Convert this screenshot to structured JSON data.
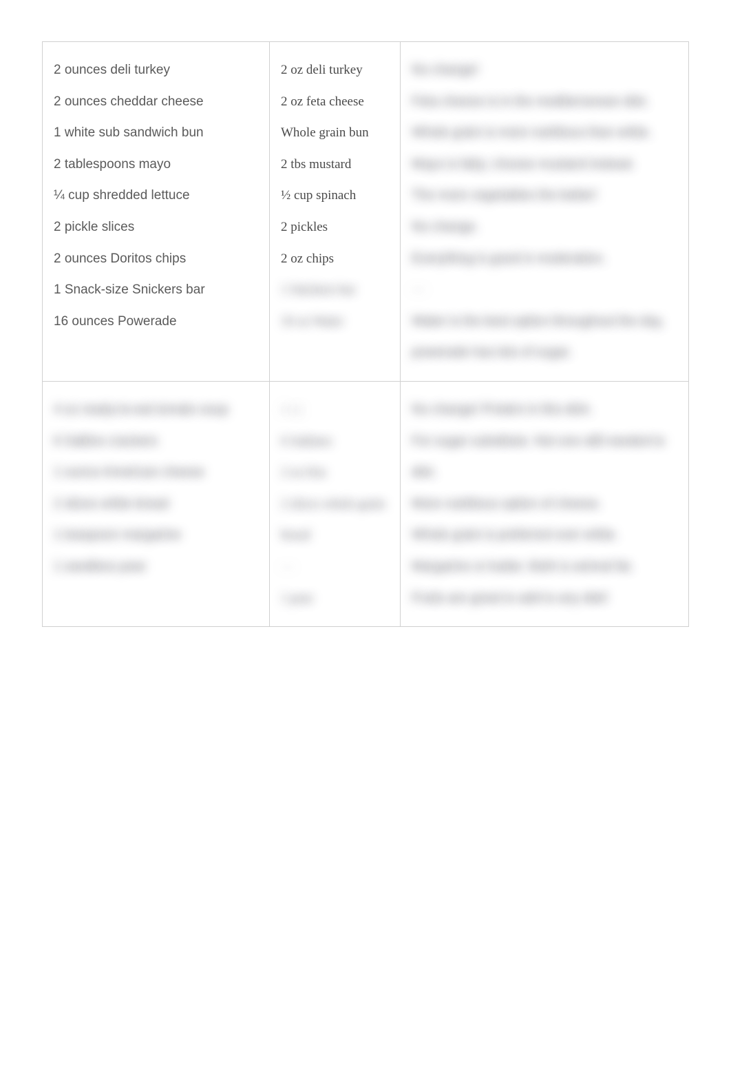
{
  "row1": {
    "colA": [
      "2 ounces deli turkey",
      "2 ounces cheddar cheese",
      "1 white sub sandwich bun",
      "2 tablespoons mayo",
      "¼ cup shredded lettuce",
      "2 pickle slices",
      "2 ounces Doritos chips",
      "1 Snack-size Snickers bar",
      "16 ounces Powerade"
    ],
    "colB_clear": [
      "2 oz deli turkey",
      "2 oz feta cheese",
      "Whole grain bun",
      "2 tbs mustard",
      "½ cup spinach",
      "2 pickles",
      "2 oz chips"
    ],
    "colB_blur": [
      "1 Snickers bar",
      "16 oz Water"
    ],
    "colC_blur": [
      "No change!",
      "Feta cheese is in the mediterranean diet.",
      "Whole grain is more nutritious than white.",
      "Mayo is fatty; choose mustard instead.",
      "The more vegetables the better!",
      "No change.",
      "Everything is good in moderation.",
      "—",
      "Water is the best option throughout the day, powerade has lots of sugar."
    ]
  },
  "row2": {
    "colA_blur": [
      "4 oz ready-to-eat tomato soup",
      "6 Saltine crackers",
      "1 ounce American cheese",
      "2 slices white bread",
      "1 teaspoon margarine",
      "1 seedless pear"
    ],
    "colB_blur": [
      "4 oz",
      "6 Saltines",
      "2 oz feta",
      "2 slices whole grain bread",
      "—",
      "1 pear"
    ],
    "colC_blur": [
      "No change! Protein in this dish.",
      "For sugar substitute. Not one still needed to diet.",
      "More nutritious option of cheese.",
      "Whole grain is preferred over white.",
      "Margarine or butter. Both is animal fat.",
      "Fruits are great to add to any diet!"
    ]
  }
}
